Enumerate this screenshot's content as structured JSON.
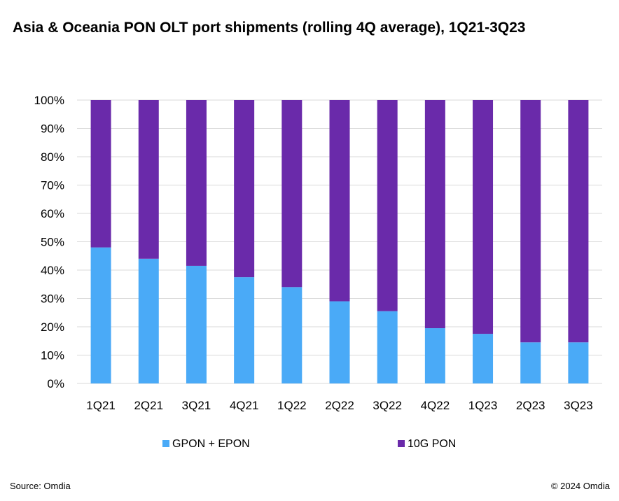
{
  "chart_data": {
    "type": "bar",
    "stacked": true,
    "title": "Asia & Oceania PON OLT port shipments (rolling 4Q average), 1Q21-3Q23",
    "categories": [
      "1Q21",
      "2Q21",
      "3Q21",
      "4Q21",
      "1Q22",
      "2Q22",
      "3Q22",
      "4Q22",
      "1Q23",
      "2Q23",
      "3Q23"
    ],
    "series": [
      {
        "name": "GPON + EPON",
        "color": "#4aaaf7",
        "values": [
          48,
          44,
          41.5,
          37.5,
          34,
          29,
          25.5,
          19.5,
          17.5,
          14.5,
          14.5
        ]
      },
      {
        "name": "10G PON",
        "color": "#6a2aaa",
        "values": [
          52,
          56,
          58.5,
          62.5,
          66,
          71,
          74.5,
          80.5,
          82.5,
          85.5,
          85.5
        ]
      }
    ],
    "ylim": [
      0,
      100
    ],
    "yticks": [
      "0%",
      "10%",
      "20%",
      "30%",
      "40%",
      "50%",
      "60%",
      "70%",
      "80%",
      "90%",
      "100%"
    ],
    "grid": true,
    "legend_position": "bottom"
  },
  "footer": {
    "source": "Source: Omdia",
    "copyright": "© 2024 Omdia"
  }
}
